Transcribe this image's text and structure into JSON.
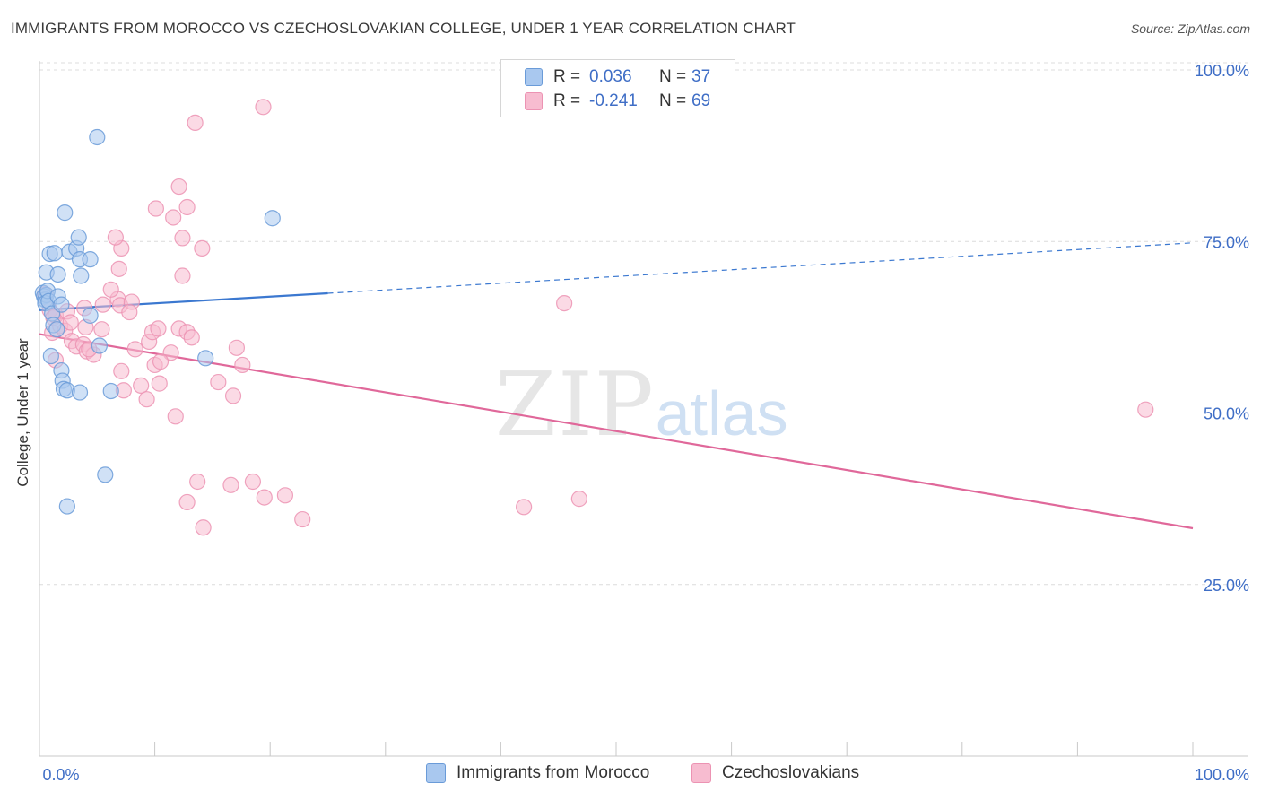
{
  "header": {
    "title": "IMMIGRANTS FROM MOROCCO VS CZECHOSLOVAKIAN COLLEGE, UNDER 1 YEAR CORRELATION CHART",
    "source": "Source: ZipAtlas.com"
  },
  "watermark": {
    "zip": "ZIP",
    "atlas": "atlas"
  },
  "legend": {
    "rows": [
      {
        "r_label": "R =",
        "r_value": "0.036",
        "n_label": "N =",
        "n_value": "37"
      },
      {
        "r_label": "R =",
        "r_value": "-0.241",
        "n_label": "N =",
        "n_value": "69"
      }
    ],
    "bottom": [
      {
        "label": "Immigrants from Morocco"
      },
      {
        "label": "Czechoslovakians"
      }
    ]
  },
  "colors": {
    "morocco_fill": "#a9c8ef",
    "morocco_stroke": "#6a9bd8",
    "morocco_line": "#3b78d0",
    "czech_fill": "#f7bcd0",
    "czech_stroke": "#ec93b3",
    "czech_line": "#e0689a",
    "grid": "#dcdcdc",
    "tick_text": "#3f6ec6"
  },
  "chart_data": {
    "type": "scatter",
    "title": "IMMIGRANTS FROM MOROCCO VS CZECHOSLOVAKIAN COLLEGE, UNDER 1 YEAR CORRELATION CHART",
    "xlabel": "",
    "ylabel": "College, Under 1 year",
    "xlim": [
      0,
      100
    ],
    "ylim": [
      0,
      100
    ],
    "x_tick_labels": [
      "0.0%",
      "100.0%"
    ],
    "y_ticks": [
      {
        "value": 100,
        "label": "100.0%"
      },
      {
        "value": 75,
        "label": "75.0%"
      },
      {
        "value": 50,
        "label": "50.0%"
      },
      {
        "value": 25,
        "label": "25.0%"
      }
    ],
    "series": [
      {
        "name": "Immigrants from Morocco",
        "r": 0.036,
        "n": 37,
        "trend": {
          "x0": 0,
          "y0": 65.0,
          "x1": 100,
          "y1": 74.8,
          "solid_until": 25
        },
        "points": [
          [
            0.3,
            67.5
          ],
          [
            0.4,
            67.0
          ],
          [
            0.5,
            66.5
          ],
          [
            0.6,
            67.2
          ],
          [
            0.5,
            66.0
          ],
          [
            0.7,
            67.8
          ],
          [
            0.8,
            66.3
          ],
          [
            0.6,
            70.5
          ],
          [
            0.9,
            73.2
          ],
          [
            1.3,
            73.3
          ],
          [
            1.6,
            67.0
          ],
          [
            1.1,
            64.5
          ],
          [
            1.2,
            62.8
          ],
          [
            1.6,
            70.2
          ],
          [
            1.9,
            65.8
          ],
          [
            2.2,
            79.2
          ],
          [
            2.6,
            73.5
          ],
          [
            3.2,
            74.0
          ],
          [
            3.5,
            72.4
          ],
          [
            3.4,
            75.6
          ],
          [
            3.6,
            70.0
          ],
          [
            4.4,
            72.4
          ],
          [
            4.4,
            64.2
          ],
          [
            1.0,
            58.3
          ],
          [
            1.9,
            56.2
          ],
          [
            2.0,
            54.7
          ],
          [
            2.1,
            53.5
          ],
          [
            2.4,
            53.3
          ],
          [
            3.5,
            53.0
          ],
          [
            5.2,
            59.8
          ],
          [
            6.2,
            53.2
          ],
          [
            5.0,
            90.2
          ],
          [
            5.7,
            41.0
          ],
          [
            2.4,
            36.4
          ],
          [
            14.4,
            58.0
          ],
          [
            20.2,
            78.4
          ],
          [
            1.5,
            62.2
          ]
        ]
      },
      {
        "name": "Czechoslovakians",
        "r": -0.241,
        "n": 69,
        "trend": {
          "x0": 0,
          "y0": 61.5,
          "x1": 100,
          "y1": 33.2
        },
        "points": [
          [
            0.5,
            67.3
          ],
          [
            0.9,
            65.0
          ],
          [
            1.2,
            63.9
          ],
          [
            1.4,
            64.2
          ],
          [
            1.1,
            61.7
          ],
          [
            1.4,
            57.7
          ],
          [
            1.8,
            62.7
          ],
          [
            2.2,
            62.0
          ],
          [
            2.4,
            64.8
          ],
          [
            2.8,
            60.5
          ],
          [
            3.2,
            59.7
          ],
          [
            2.7,
            63.2
          ],
          [
            4.0,
            62.5
          ],
          [
            3.8,
            60.0
          ],
          [
            4.1,
            59.0
          ],
          [
            4.7,
            58.5
          ],
          [
            4.3,
            59.3
          ],
          [
            5.5,
            65.8
          ],
          [
            6.8,
            66.6
          ],
          [
            7.0,
            65.7
          ],
          [
            5.4,
            62.2
          ],
          [
            3.9,
            65.3
          ],
          [
            6.2,
            68.0
          ],
          [
            6.9,
            71.0
          ],
          [
            7.1,
            74.0
          ],
          [
            6.6,
            75.6
          ],
          [
            8.0,
            66.2
          ],
          [
            7.1,
            56.1
          ],
          [
            8.3,
            59.3
          ],
          [
            8.8,
            54.0
          ],
          [
            9.3,
            52.0
          ],
          [
            9.5,
            60.4
          ],
          [
            10.0,
            57.0
          ],
          [
            10.4,
            54.3
          ],
          [
            7.8,
            64.7
          ],
          [
            7.3,
            53.3
          ],
          [
            9.8,
            61.8
          ],
          [
            10.3,
            62.3
          ],
          [
            11.4,
            58.8
          ],
          [
            12.1,
            62.3
          ],
          [
            12.8,
            61.8
          ],
          [
            10.1,
            79.8
          ],
          [
            12.1,
            83.0
          ],
          [
            12.8,
            80.0
          ],
          [
            11.6,
            78.5
          ],
          [
            12.4,
            75.5
          ],
          [
            12.4,
            70.0
          ],
          [
            14.1,
            74.0
          ],
          [
            10.5,
            57.5
          ],
          [
            13.2,
            61.0
          ],
          [
            11.8,
            49.5
          ],
          [
            15.5,
            54.5
          ],
          [
            16.8,
            52.5
          ],
          [
            17.1,
            59.5
          ],
          [
            17.6,
            57.0
          ],
          [
            12.8,
            37.0
          ],
          [
            14.2,
            33.3
          ],
          [
            13.7,
            40.0
          ],
          [
            16.6,
            39.5
          ],
          [
            18.5,
            40.0
          ],
          [
            19.5,
            37.7
          ],
          [
            21.3,
            38.0
          ],
          [
            22.8,
            34.5
          ],
          [
            19.4,
            94.6
          ],
          [
            13.5,
            92.3
          ],
          [
            42.0,
            36.3
          ],
          [
            45.5,
            66.0
          ],
          [
            46.8,
            37.5
          ],
          [
            95.9,
            50.5
          ]
        ]
      }
    ]
  }
}
